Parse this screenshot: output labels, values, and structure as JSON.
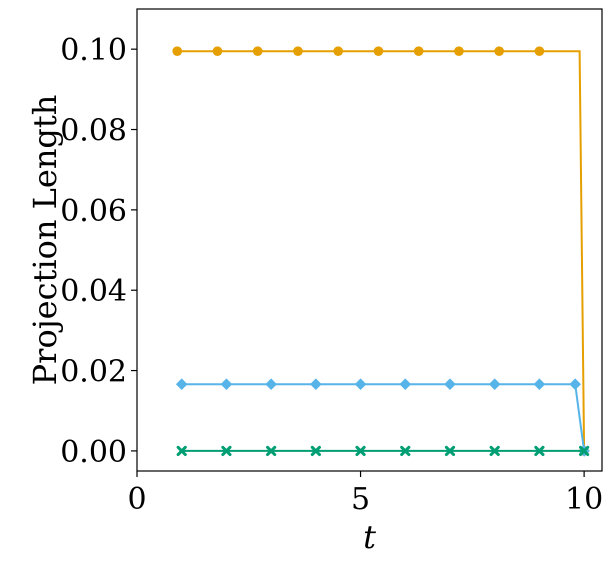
{
  "chart_data": {
    "type": "line",
    "title": "",
    "xlabel": "t",
    "ylabel": "Projection Length",
    "xlim": [
      0,
      10.4
    ],
    "ylim": [
      -0.005,
      0.11
    ],
    "xticks": [
      0,
      5,
      10
    ],
    "xtick_labels": [
      "0",
      "5",
      "10"
    ],
    "yticks": [
      0.0,
      0.02,
      0.04,
      0.06,
      0.08,
      0.1
    ],
    "ytick_labels": [
      "0.00",
      "0.02",
      "0.04",
      "0.06",
      "0.08",
      "0.10"
    ],
    "grid": false,
    "legend": "none",
    "series": [
      {
        "color": "#E69F00",
        "marker": "circle",
        "x": [
          0.9,
          1.8,
          2.7,
          3.6,
          4.5,
          5.4,
          6.3,
          7.2,
          8.1,
          9.0,
          9.9,
          10.0
        ],
        "y": [
          0.0995,
          0.0995,
          0.0995,
          0.0995,
          0.0995,
          0.0995,
          0.0995,
          0.0995,
          0.0995,
          0.0995,
          0.0995,
          0.0
        ],
        "marker_mask": [
          true,
          true,
          true,
          true,
          true,
          true,
          true,
          true,
          true,
          true,
          false,
          true
        ]
      },
      {
        "color": "#56B4E9",
        "marker": "diamond",
        "x": [
          1.0,
          2.0,
          3.0,
          4.0,
          5.0,
          6.0,
          7.0,
          8.0,
          9.0,
          9.8,
          10.0
        ],
        "y": [
          0.0166,
          0.0166,
          0.0166,
          0.0166,
          0.0166,
          0.0166,
          0.0166,
          0.0166,
          0.0166,
          0.0166,
          0.0
        ],
        "marker_mask": [
          true,
          true,
          true,
          true,
          true,
          true,
          true,
          true,
          true,
          true,
          true
        ]
      },
      {
        "color": "#009E73",
        "marker": "x",
        "x": [
          1.0,
          2.0,
          3.0,
          4.0,
          5.0,
          6.0,
          7.0,
          8.0,
          9.0,
          10.0
        ],
        "y": [
          0.0,
          0.0,
          0.0,
          0.0,
          0.0,
          0.0,
          0.0,
          0.0,
          0.0,
          0.0
        ],
        "marker_mask": [
          true,
          true,
          true,
          true,
          true,
          true,
          true,
          true,
          true,
          true
        ]
      }
    ]
  }
}
